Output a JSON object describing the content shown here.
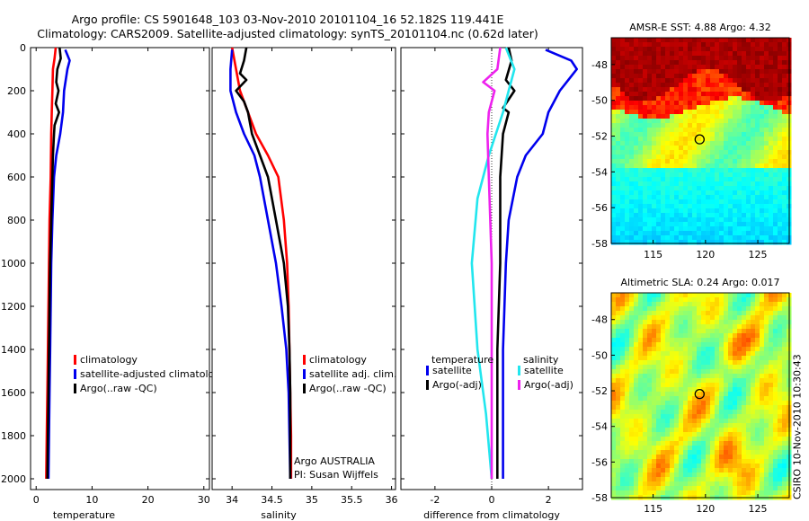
{
  "header": {
    "title_line1": "Argo profile: CS 5901648_103 03-Nov-2010 20101104_16 52.182S 119.441E",
    "title_line2": "Climatology: CARS2009. Satellite-adjusted climatology: synTS_20101104.nc (0.62d later)"
  },
  "side_label": "CSIRO 10-Nov-2010 10:30:43",
  "colors": {
    "red": "#ff0000",
    "blue": "#0000ee",
    "black": "#000000",
    "cyan": "#22e6ee",
    "magenta": "#ee22ee"
  },
  "chart_data": [
    {
      "type": "line",
      "id": "temperature",
      "xlabel": "temperature",
      "xlim": [
        -1,
        31
      ],
      "ylim": [
        2050,
        0
      ],
      "xticks": [
        0,
        10,
        20,
        30
      ],
      "yticks": [
        0,
        200,
        400,
        600,
        800,
        1000,
        1200,
        1400,
        1600,
        1800,
        2000
      ],
      "legend": [
        "climatology",
        "satellite-adjusted climatolog",
        "Argo(..raw -QC)"
      ],
      "series": [
        {
          "name": "climatology",
          "color": "red",
          "points": [
            [
              3.5,
              0
            ],
            [
              3.3,
              50
            ],
            [
              3.0,
              100
            ],
            [
              2.9,
              200
            ],
            [
              2.8,
              300
            ],
            [
              2.7,
              400
            ],
            [
              2.6,
              600
            ],
            [
              2.4,
              800
            ],
            [
              2.3,
              1000
            ],
            [
              2.2,
              1200
            ],
            [
              2.1,
              1400
            ],
            [
              2.0,
              1600
            ],
            [
              1.9,
              1800
            ],
            [
              1.8,
              2000
            ]
          ]
        },
        {
          "name": "satellite-adjusted climatolog",
          "color": "blue",
          "points": [
            [
              5.2,
              10
            ],
            [
              6.0,
              60
            ],
            [
              5.6,
              100
            ],
            [
              5.0,
              200
            ],
            [
              4.8,
              300
            ],
            [
              4.3,
              400
            ],
            [
              3.6,
              500
            ],
            [
              3.2,
              600
            ],
            [
              2.9,
              800
            ],
            [
              2.7,
              1000
            ],
            [
              2.6,
              1200
            ],
            [
              2.5,
              1400
            ],
            [
              2.4,
              1600
            ],
            [
              2.3,
              1800
            ],
            [
              2.2,
              2000
            ]
          ]
        },
        {
          "name": "Argo(..raw -QC)",
          "color": "black",
          "points": [
            [
              4.2,
              0
            ],
            [
              4.4,
              50
            ],
            [
              3.8,
              100
            ],
            [
              3.6,
              160
            ],
            [
              4.0,
              200
            ],
            [
              3.5,
              260
            ],
            [
              4.1,
              300
            ],
            [
              3.3,
              360
            ],
            [
              3.2,
              400
            ],
            [
              3.0,
              500
            ],
            [
              2.9,
              600
            ],
            [
              2.7,
              800
            ],
            [
              2.5,
              1000
            ],
            [
              2.4,
              1200
            ],
            [
              2.3,
              1400
            ],
            [
              2.2,
              1600
            ],
            [
              2.1,
              1800
            ],
            [
              2.0,
              2000
            ]
          ]
        }
      ]
    },
    {
      "type": "line",
      "id": "salinity",
      "xlabel": "salinity",
      "xlim": [
        33.75,
        36.05
      ],
      "ylim": [
        2050,
        0
      ],
      "xticks": [
        34,
        34.5,
        35,
        35.5,
        36
      ],
      "legend": [
        "climatology",
        "satellite adj. clim.",
        "Argo(..raw -QC)"
      ],
      "annotation": [
        "Argo AUSTRALIA",
        "PI: Susan Wijffels"
      ],
      "series": [
        {
          "name": "climatology",
          "color": "red",
          "points": [
            [
              34.0,
              0
            ],
            [
              34.05,
              100
            ],
            [
              34.1,
              200
            ],
            [
              34.2,
              300
            ],
            [
              34.3,
              400
            ],
            [
              34.45,
              500
            ],
            [
              34.58,
              600
            ],
            [
              34.65,
              800
            ],
            [
              34.69,
              1000
            ],
            [
              34.71,
              1200
            ],
            [
              34.72,
              1400
            ],
            [
              34.73,
              1600
            ],
            [
              34.74,
              1800
            ],
            [
              34.74,
              2000
            ]
          ]
        },
        {
          "name": "satellite adj. clim.",
          "color": "blue",
          "points": [
            [
              34.0,
              10
            ],
            [
              33.98,
              100
            ],
            [
              33.98,
              200
            ],
            [
              34.05,
              300
            ],
            [
              34.15,
              400
            ],
            [
              34.28,
              500
            ],
            [
              34.35,
              600
            ],
            [
              34.45,
              800
            ],
            [
              34.55,
              1000
            ],
            [
              34.62,
              1200
            ],
            [
              34.68,
              1400
            ],
            [
              34.71,
              1600
            ],
            [
              34.72,
              1800
            ],
            [
              34.73,
              2000
            ]
          ]
        },
        {
          "name": "Argo(..raw -QC)",
          "color": "black",
          "points": [
            [
              34.18,
              0
            ],
            [
              34.15,
              60
            ],
            [
              34.1,
              120
            ],
            [
              34.18,
              150
            ],
            [
              34.05,
              200
            ],
            [
              34.15,
              250
            ],
            [
              34.2,
              300
            ],
            [
              34.25,
              400
            ],
            [
              34.35,
              500
            ],
            [
              34.45,
              600
            ],
            [
              34.55,
              800
            ],
            [
              34.65,
              1000
            ],
            [
              34.7,
              1200
            ],
            [
              34.72,
              1400
            ],
            [
              34.73,
              1600
            ],
            [
              34.73,
              1800
            ],
            [
              34.73,
              2000
            ]
          ]
        }
      ]
    },
    {
      "type": "line",
      "id": "difference",
      "xlabel": "difference from climatology",
      "xlim": [
        -3.2,
        3.2
      ],
      "ylim": [
        2050,
        0
      ],
      "xticks": [
        -2,
        0,
        2
      ],
      "legend_temp_title": "temperature",
      "legend_sal_title": "salinity",
      "legend": [
        "satellite",
        "Argo(-adj)",
        "satellite",
        "Argo(-adj)"
      ],
      "series": [
        {
          "name": "temperature satellite",
          "color": "blue",
          "points": [
            [
              1.9,
              10
            ],
            [
              2.8,
              60
            ],
            [
              3.0,
              100
            ],
            [
              2.4,
              200
            ],
            [
              2.0,
              300
            ],
            [
              1.8,
              400
            ],
            [
              1.2,
              500
            ],
            [
              0.9,
              600
            ],
            [
              0.6,
              800
            ],
            [
              0.5,
              1000
            ],
            [
              0.4,
              1400
            ],
            [
              0.4,
              2000
            ]
          ]
        },
        {
          "name": "temperature Argo(-adj)",
          "color": "black",
          "points": [
            [
              0.6,
              0
            ],
            [
              0.7,
              60
            ],
            [
              0.5,
              150
            ],
            [
              0.8,
              200
            ],
            [
              0.4,
              280
            ],
            [
              0.6,
              300
            ],
            [
              0.4,
              400
            ],
            [
              0.3,
              600
            ],
            [
              0.3,
              1000
            ],
            [
              0.2,
              1400
            ],
            [
              0.2,
              2000
            ]
          ]
        },
        {
          "name": "salinity satellite",
          "color": "cyan",
          "points": [
            [
              0.5,
              0
            ],
            [
              0.8,
              100
            ],
            [
              0.6,
              200
            ],
            [
              0.4,
              300
            ],
            [
              -0.1,
              500
            ],
            [
              -0.5,
              700
            ],
            [
              -0.7,
              1000
            ],
            [
              -0.5,
              1400
            ],
            [
              -0.2,
              1700
            ],
            [
              0.0,
              2000
            ]
          ]
        },
        {
          "name": "salinity Argo(-adj)",
          "color": "magenta",
          "points": [
            [
              0.3,
              0
            ],
            [
              0.2,
              100
            ],
            [
              -0.3,
              160
            ],
            [
              0.1,
              200
            ],
            [
              -0.1,
              300
            ],
            [
              -0.15,
              400
            ],
            [
              -0.1,
              600
            ],
            [
              0.0,
              1000
            ],
            [
              0.0,
              1400
            ],
            [
              0.0,
              2000
            ]
          ]
        }
      ]
    },
    {
      "type": "heatmap",
      "id": "sst_map",
      "title": "AMSR-E SST: 4.88 Argo: 4.32",
      "xlim": [
        111,
        128
      ],
      "ylim": [
        -58,
        -46.5
      ],
      "xticks": [
        115,
        120,
        125
      ],
      "yticks": [
        -48,
        -50,
        -52,
        -54,
        -56,
        -58
      ],
      "marker": [
        119.441,
        -52.182
      ]
    },
    {
      "type": "heatmap",
      "id": "sla_map",
      "title": "Altimetric SLA: 0.24 Argo: 0.017",
      "xlim": [
        111,
        128
      ],
      "ylim": [
        -58,
        -46.5
      ],
      "xticks": [
        115,
        120,
        125
      ],
      "yticks": [
        -48,
        -50,
        -52,
        -54,
        -56,
        -58
      ],
      "marker": [
        119.441,
        -52.182
      ]
    }
  ]
}
